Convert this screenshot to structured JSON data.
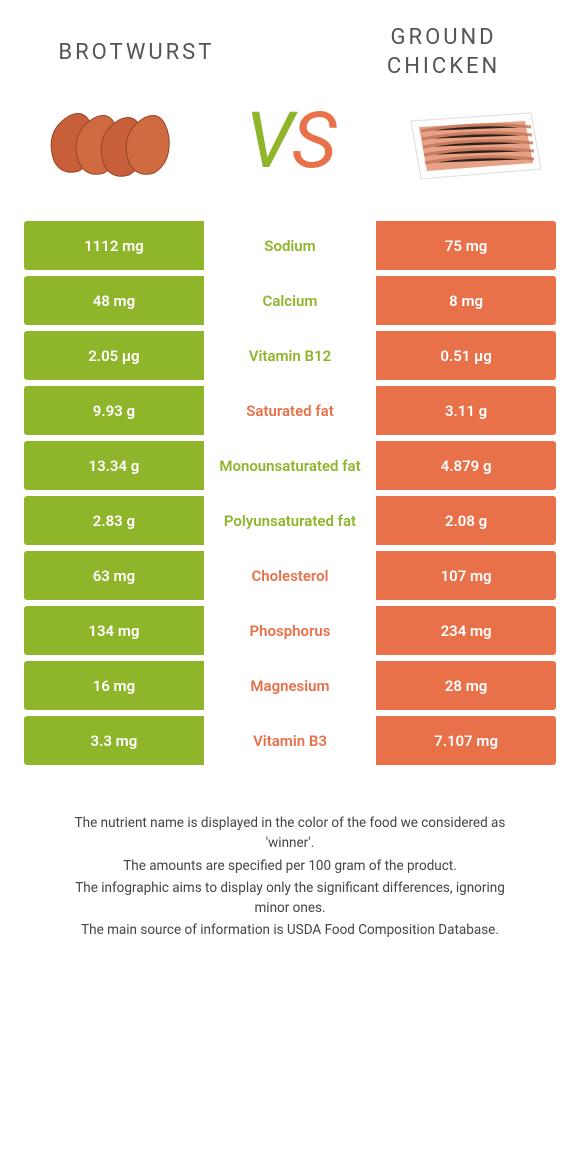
{
  "colors": {
    "left_food": "#8fb52b",
    "right_food": "#e9714a",
    "row_bg_white": "#ffffff"
  },
  "header": {
    "left_title": "Brotwurst",
    "right_title": "Ground Chicken",
    "vs_v": "V",
    "vs_s": "S"
  },
  "rows": [
    {
      "left": "1112 mg",
      "label": "Sodium",
      "right": "75 mg",
      "winner": "left"
    },
    {
      "left": "48 mg",
      "label": "Calcium",
      "right": "8 mg",
      "winner": "left"
    },
    {
      "left": "2.05 µg",
      "label": "Vitamin B12",
      "right": "0.51 µg",
      "winner": "left"
    },
    {
      "left": "9.93 g",
      "label": "Saturated fat",
      "right": "3.11 g",
      "winner": "right"
    },
    {
      "left": "13.34 g",
      "label": "Monounsaturated fat",
      "right": "4.879 g",
      "winner": "left"
    },
    {
      "left": "2.83 g",
      "label": "Polyunsaturated fat",
      "right": "2.08 g",
      "winner": "left"
    },
    {
      "left": "63 mg",
      "label": "Cholesterol",
      "right": "107 mg",
      "winner": "right"
    },
    {
      "left": "134 mg",
      "label": "Phosphorus",
      "right": "234 mg",
      "winner": "right"
    },
    {
      "left": "16 mg",
      "label": "Magnesium",
      "right": "28 mg",
      "winner": "right"
    },
    {
      "left": "3.3 mg",
      "label": "Vitamin B3",
      "right": "7.107 mg",
      "winner": "right"
    }
  ],
  "footer": {
    "line1": "The nutrient name is displayed in the color of the food we considered as 'winner'.",
    "line2": "The amounts are specified per 100 gram of the product.",
    "line3": "The infographic aims to display only the significant differences, ignoring minor ones.",
    "line4": "The main source of information is USDA Food Composition Database."
  }
}
